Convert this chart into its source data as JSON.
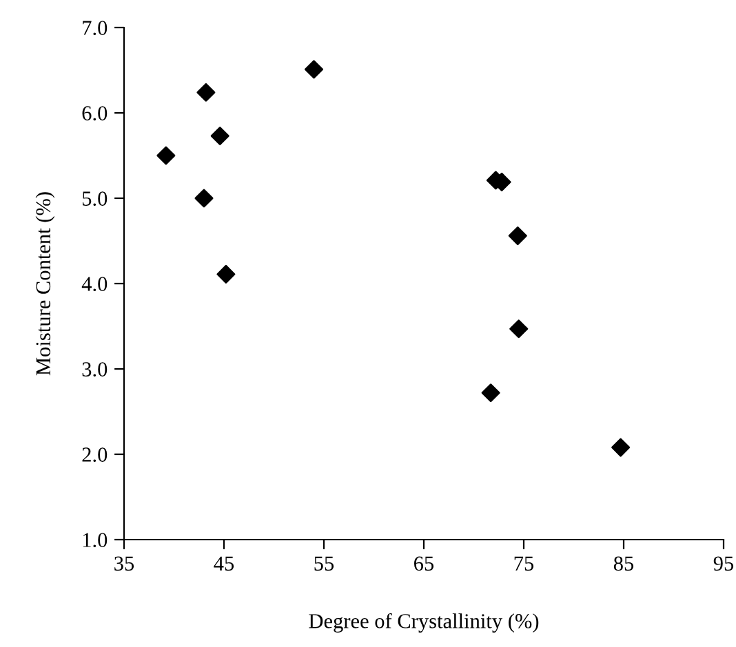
{
  "chart_data": {
    "type": "scatter",
    "xlabel": "Degree of Crystallinity (%)",
    "ylabel": "Moisture Content (%)",
    "x": [
      39.2,
      43.2,
      44.6,
      43.0,
      45.2,
      54.0,
      72.2,
      72.8,
      74.4,
      74.5,
      71.7,
      84.7
    ],
    "values": [
      5.5,
      6.24,
      5.73,
      5.0,
      4.11,
      6.51,
      5.21,
      5.19,
      4.56,
      3.47,
      2.72,
      2.08
    ],
    "color": "#000000",
    "marker": "diamond",
    "grid": false,
    "legend": false,
    "xlim": [
      35,
      95
    ],
    "xticks": [
      35,
      45,
      55,
      65,
      75,
      85,
      95
    ],
    "ylim": [
      1.0,
      7.0
    ],
    "yticks": [
      {
        "value": 1,
        "label": "1.0"
      },
      {
        "value": 2,
        "label": "2.0"
      },
      {
        "value": 3,
        "label": "3.0"
      },
      {
        "value": 4,
        "label": "4.0"
      },
      {
        "value": 5,
        "label": "5.0"
      },
      {
        "value": 6,
        "label": "6.0"
      },
      {
        "value": 7,
        "label": "7.0"
      }
    ]
  }
}
